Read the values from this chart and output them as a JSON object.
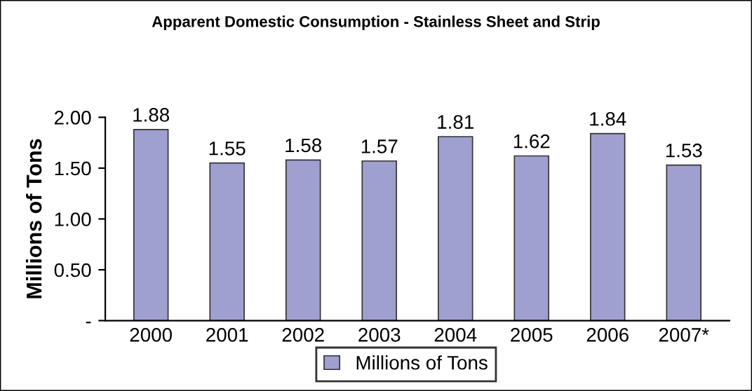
{
  "chart_data": {
    "type": "bar",
    "title": "Apparent Domestic Consumption - Stainless Sheet and Strip",
    "ylabel": "Millions of Tons",
    "categories": [
      "2000",
      "2001",
      "2002",
      "2003",
      "2004",
      "2005",
      "2006",
      "2007*"
    ],
    "series": [
      {
        "name": "Millions of Tons",
        "color": "#9f9fd0",
        "values": [
          1.88,
          1.55,
          1.58,
          1.57,
          1.81,
          1.62,
          1.84,
          1.53
        ]
      }
    ],
    "ylim": [
      0,
      2.0
    ],
    "yticks": [
      {
        "value": 0,
        "label": "-"
      },
      {
        "value": 0.5,
        "label": "0.50"
      },
      {
        "value": 1.0,
        "label": "1.00"
      },
      {
        "value": 1.5,
        "label": "1.50"
      },
      {
        "value": 2.0,
        "label": "2.00"
      }
    ],
    "data_labels": true,
    "legend": "bottom",
    "grid": false
  }
}
